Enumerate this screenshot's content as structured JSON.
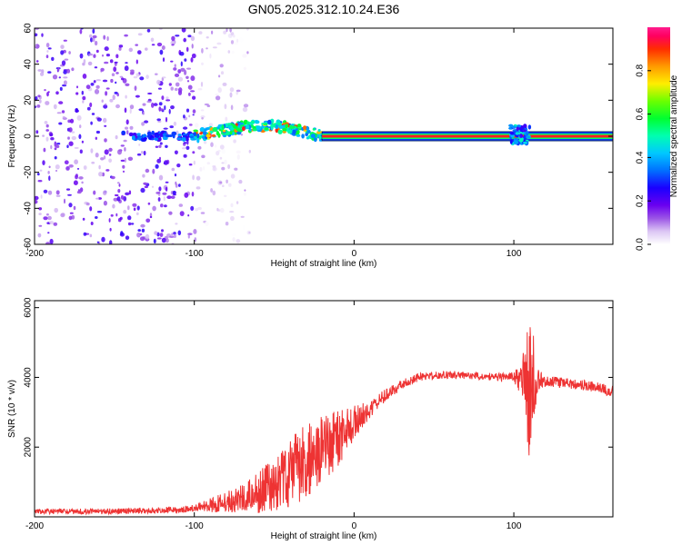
{
  "title": "GN05.2025.312.10.24.E36",
  "colors": {
    "snr_line": "#ee3333",
    "frame": "#000000",
    "background": "#ffffff"
  },
  "chart_data": [
    {
      "type": "heatmap",
      "name": "spectrogram",
      "xlabel": "Height of straight line (km)",
      "ylabel": "Frequency (Hz)",
      "xlim": [
        -200,
        162
      ],
      "ylim": [
        -60,
        60
      ],
      "xticks": [
        -200,
        -100,
        0,
        100
      ],
      "yticks": [
        -60,
        -40,
        -20,
        0,
        20,
        40,
        60
      ],
      "colorbar": {
        "label": "Normalized spectral amplitude",
        "range": [
          0.0,
          1.0
        ],
        "ticks": [
          0.0,
          0.2,
          0.4,
          0.6,
          0.8
        ],
        "tick_labels": [
          "0.0",
          "0.2",
          "0.4",
          "0.6",
          "0.8"
        ]
      },
      "regions": [
        {
          "description": "diffuse noise",
          "x_range": [
            -200,
            -100
          ],
          "freq_range": [
            -60,
            60
          ],
          "amplitude": [
            0.05,
            0.25
          ]
        },
        {
          "description": "faint noise",
          "x_range": [
            -100,
            -65
          ],
          "freq_range": [
            -60,
            60
          ],
          "amplitude": [
            0.0,
            0.1
          ]
        },
        {
          "description": "carrier onset",
          "x_range": [
            -145,
            -100
          ],
          "freq_range": [
            -2,
            2
          ],
          "amplitude": [
            0.2,
            0.4
          ]
        },
        {
          "description": "drifting carrier",
          "x_range": [
            -100,
            -20
          ],
          "freq_range": [
            -8,
            16
          ],
          "amplitude": [
            0.3,
            0.6
          ]
        },
        {
          "description": "steady carrier",
          "x_range": [
            -20,
            162
          ],
          "freq_range": [
            -1,
            1
          ],
          "amplitude": [
            0.9,
            1.0
          ]
        },
        {
          "description": "disturbance",
          "x_range": [
            98,
            110
          ],
          "freq_range": [
            -4,
            6
          ],
          "amplitude": [
            0.2,
            0.5
          ]
        }
      ],
      "carrier_frequency_hz": 0
    },
    {
      "type": "line",
      "name": "snr",
      "xlabel": "Height of straight line (km)",
      "ylabel": "SNR (10 * v/v)",
      "xlim": [
        -200,
        162
      ],
      "ylim": [
        0,
        6200
      ],
      "xticks": [
        -200,
        -100,
        0,
        100
      ],
      "yticks": [
        2000,
        4000,
        6000
      ],
      "series": [
        {
          "name": "SNR envelope",
          "x": [
            -200,
            -150,
            -120,
            -100,
            -90,
            -80,
            -70,
            -60,
            -50,
            -40,
            -30,
            -20,
            -10,
            0,
            10,
            20,
            30,
            40,
            50,
            60,
            70,
            80,
            90,
            100,
            105,
            108,
            110,
            112,
            115,
            120,
            130,
            140,
            150,
            162
          ],
          "mean": [
            150,
            160,
            190,
            240,
            330,
            420,
            520,
            700,
            950,
            1250,
            1600,
            1950,
            2250,
            2700,
            3100,
            3500,
            3800,
            4000,
            4050,
            4080,
            4050,
            4030,
            4000,
            4000,
            3950,
            3800,
            3400,
            3800,
            3900,
            3900,
            3850,
            3800,
            3750,
            3600
          ],
          "amplitude": [
            80,
            80,
            90,
            110,
            200,
            300,
            400,
            600,
            800,
            1000,
            1100,
            1000,
            800,
            500,
            250,
            180,
            130,
            120,
            110,
            110,
            110,
            110,
            120,
            150,
            500,
            1600,
            2200,
            1500,
            400,
            150,
            150,
            150,
            160,
            170
          ]
        }
      ]
    }
  ]
}
